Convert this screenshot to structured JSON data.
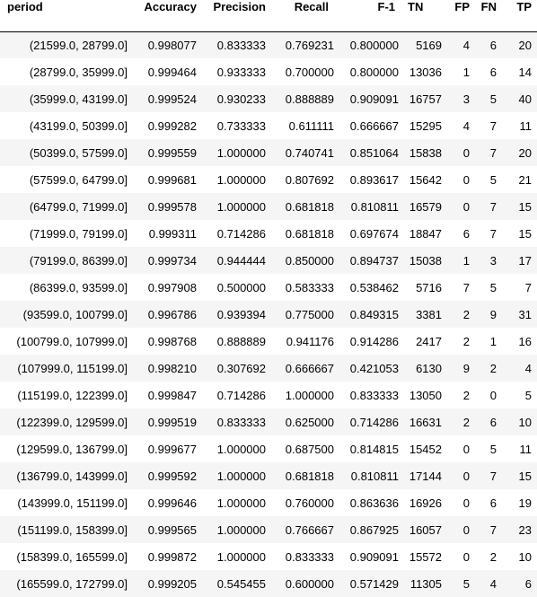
{
  "table": {
    "columns": [
      "period",
      "Accuracy",
      "Precision",
      "Recall",
      "F-1",
      "TN",
      "FP",
      "FN",
      "TP"
    ],
    "rows": [
      [
        "(21599.0, 28799.0]",
        "0.998077",
        "0.833333",
        "0.769231",
        "0.800000",
        "5169",
        "4",
        "6",
        "20"
      ],
      [
        "(28799.0, 35999.0]",
        "0.999464",
        "0.933333",
        "0.700000",
        "0.800000",
        "13036",
        "1",
        "6",
        "14"
      ],
      [
        "(35999.0, 43199.0]",
        "0.999524",
        "0.930233",
        "0.888889",
        "0.909091",
        "16757",
        "3",
        "5",
        "40"
      ],
      [
        "(43199.0, 50399.0]",
        "0.999282",
        "0.733333",
        "0.611111",
        "0.666667",
        "15295",
        "4",
        "7",
        "11"
      ],
      [
        "(50399.0, 57599.0]",
        "0.999559",
        "1.000000",
        "0.740741",
        "0.851064",
        "15838",
        "0",
        "7",
        "20"
      ],
      [
        "(57599.0, 64799.0]",
        "0.999681",
        "1.000000",
        "0.807692",
        "0.893617",
        "15642",
        "0",
        "5",
        "21"
      ],
      [
        "(64799.0, 71999.0]",
        "0.999578",
        "1.000000",
        "0.681818",
        "0.810811",
        "16579",
        "0",
        "7",
        "15"
      ],
      [
        "(71999.0, 79199.0]",
        "0.999311",
        "0.714286",
        "0.681818",
        "0.697674",
        "18847",
        "6",
        "7",
        "15"
      ],
      [
        "(79199.0, 86399.0]",
        "0.999734",
        "0.944444",
        "0.850000",
        "0.894737",
        "15038",
        "1",
        "3",
        "17"
      ],
      [
        "(86399.0, 93599.0]",
        "0.997908",
        "0.500000",
        "0.583333",
        "0.538462",
        "5716",
        "7",
        "5",
        "7"
      ],
      [
        "(93599.0, 100799.0]",
        "0.996786",
        "0.939394",
        "0.775000",
        "0.849315",
        "3381",
        "2",
        "9",
        "31"
      ],
      [
        "(100799.0, 107999.0]",
        "0.998768",
        "0.888889",
        "0.941176",
        "0.914286",
        "2417",
        "2",
        "1",
        "16"
      ],
      [
        "(107999.0, 115199.0]",
        "0.998210",
        "0.307692",
        "0.666667",
        "0.421053",
        "6130",
        "9",
        "2",
        "4"
      ],
      [
        "(115199.0, 122399.0]",
        "0.999847",
        "0.714286",
        "1.000000",
        "0.833333",
        "13050",
        "2",
        "0",
        "5"
      ],
      [
        "(122399.0, 129599.0]",
        "0.999519",
        "0.833333",
        "0.625000",
        "0.714286",
        "16631",
        "2",
        "6",
        "10"
      ],
      [
        "(129599.0, 136799.0]",
        "0.999677",
        "1.000000",
        "0.687500",
        "0.814815",
        "15452",
        "0",
        "5",
        "11"
      ],
      [
        "(136799.0, 143999.0]",
        "0.999592",
        "1.000000",
        "0.681818",
        "0.810811",
        "17144",
        "0",
        "7",
        "15"
      ],
      [
        "(143999.0, 151199.0]",
        "0.999646",
        "1.000000",
        "0.760000",
        "0.863636",
        "16926",
        "0",
        "6",
        "19"
      ],
      [
        "(151199.0, 158399.0]",
        "0.999565",
        "1.000000",
        "0.766667",
        "0.867925",
        "16057",
        "0",
        "7",
        "23"
      ],
      [
        "(158399.0, 165599.0]",
        "0.999872",
        "1.000000",
        "0.833333",
        "0.909091",
        "15572",
        "0",
        "2",
        "10"
      ],
      [
        "(165599.0, 172799.0]",
        "0.999205",
        "0.545455",
        "0.600000",
        "0.571429",
        "11305",
        "5",
        "4",
        "6"
      ]
    ]
  },
  "colors": {
    "row_stripe": "#f5f5f5",
    "row_plain": "#ffffff",
    "header_rule": "#000000",
    "text": "#000000"
  }
}
